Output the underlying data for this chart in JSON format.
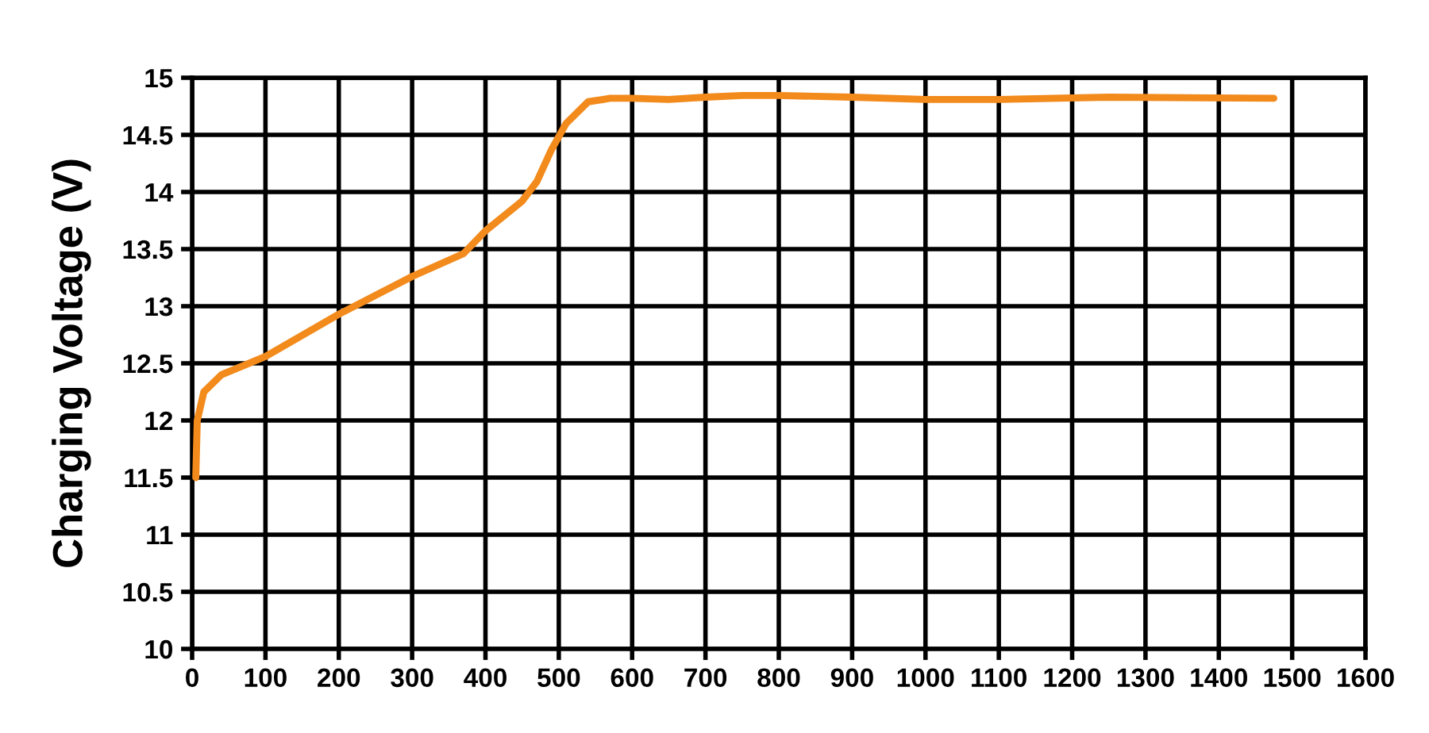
{
  "chart_data": {
    "type": "line",
    "ylabel": "Charging Voltage (V)",
    "xlim": [
      0,
      1600
    ],
    "xticks": [
      0,
      100,
      200,
      300,
      400,
      500,
      600,
      700,
      800,
      900,
      1000,
      1100,
      1200,
      1300,
      1400,
      1500,
      1600
    ],
    "ylim": [
      10,
      15
    ],
    "yticks": [
      10,
      10.5,
      11,
      11.5,
      12,
      12.5,
      13,
      13.5,
      14,
      14.5,
      15
    ],
    "grid": true,
    "marker": "none",
    "line_style": "solid",
    "series": [
      {
        "color": "#f28a1c",
        "x": [
          5,
          7,
          16,
          40,
          100,
          200,
          300,
          370,
          400,
          450,
          470,
          490,
          510,
          540,
          570,
          600,
          650,
          700,
          750,
          800,
          900,
          1000,
          1100,
          1250,
          1475
        ],
        "values": [
          11.5,
          12.0,
          12.25,
          12.4,
          12.56,
          12.93,
          13.26,
          13.46,
          13.66,
          13.92,
          14.09,
          14.37,
          14.6,
          14.79,
          14.82,
          14.82,
          14.81,
          14.83,
          14.845,
          14.845,
          14.83,
          14.81,
          14.81,
          14.83,
          14.82
        ]
      }
    ]
  }
}
